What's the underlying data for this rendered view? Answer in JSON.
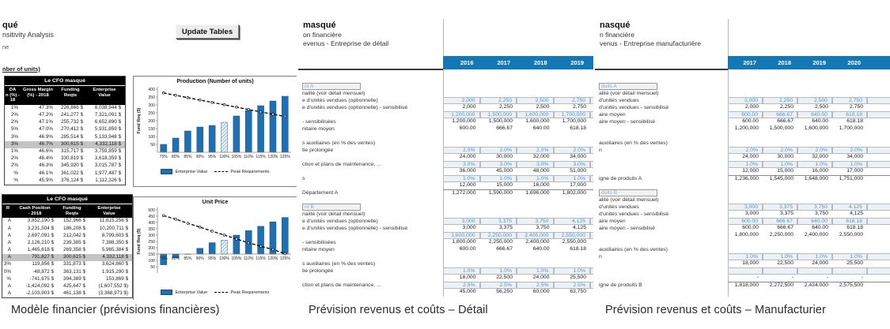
{
  "colors": {
    "header_blue": "#1478b4",
    "input_text_blue": "#4f93ce",
    "bar_blue": "#1f6fb5",
    "highlight_gray": "#c4c4c4"
  },
  "captions": [
    "Modèle financier (prévisions financières)",
    "Prévision revenus et coûts – Détail",
    "Prévision revenus et coûts – Manufacturier"
  ],
  "left_panel": {
    "title_fragment": "qué",
    "subtitle_fragment": "nsitivity Analysis",
    "note_fragment": "ne",
    "section_fragment": "nber of units)",
    "update_button": "Update Tables",
    "table1": {
      "title": "Le CFO masqué",
      "headers": [
        "DA\nn (%) -\n18",
        "Gross Margin\n(%) - 2018",
        "Funding\nReqts",
        "Enterprise\nValue"
      ],
      "rows": [
        [
          "1%",
          "47.3%",
          "226,866 $",
          "8,038,944 $"
        ],
        [
          "2%",
          "47.2%",
          "241,277 $",
          "7,321,091 $"
        ],
        [
          "2%",
          "47.1%",
          "255,732 $",
          "6,652,890 $"
        ],
        [
          "5%",
          "47.0%",
          "270,412 $",
          "5,931,859 $"
        ],
        [
          "3%",
          "46.9%",
          "285,514 $",
          "5,133,948 $"
        ],
        [
          "3%",
          "46.7%",
          "300,615 $",
          "4,332,118 $"
        ],
        [
          "1%",
          "46.6%",
          "315,717 $",
          "3,759,859 $"
        ],
        [
          "2%",
          "46.4%",
          "330,819 $",
          "3,618,359 $"
        ],
        [
          "2%",
          "46.3%",
          "345,920 $",
          "3,015,787 $"
        ],
        [
          "%",
          "46.1%",
          "361,022 $",
          "1,977,487 $"
        ],
        [
          "%",
          "45.9%",
          "376,124 $",
          "1,112,326 $"
        ]
      ],
      "highlight_row": 5
    },
    "table2": {
      "title": "Le CFO masqué",
      "headers": [
        "R",
        "Cash Position\n- 2018",
        "Funding\nReqts",
        "Enterprise\nValue"
      ],
      "rows": [
        [
          "A",
          "3,852,190 $",
          "152,966 $",
          "11,615,256 $"
        ],
        [
          "A",
          "3,231,504 $",
          "186,208 $",
          "10,200,711 $"
        ],
        [
          "A",
          "2,697,091 $",
          "212,042 $",
          "8,799,603 $"
        ],
        [
          "A",
          "2,126,210 $",
          "239,385 $",
          "7,388,350 $"
        ],
        [
          "A",
          "1,465,618 $",
          "269,358 $",
          "5,965,384 $"
        ],
        [
          "A",
          "791,827 $",
          "300,615 $",
          "4,332,118 $"
        ],
        [
          "3%",
          "119,856 $",
          "331,873 $",
          "3,624,860 $"
        ],
        [
          "0%",
          "-48,872 $",
          "363,131 $",
          "1,915,290 $"
        ],
        [
          "%",
          "-741,675 $",
          "394,389 $",
          "153,869 $"
        ],
        [
          "A",
          "-1,424,092 $",
          "425,647 $",
          "(1,607,552 $)"
        ],
        [
          "A",
          "-2,103,903 $",
          "461,138 $",
          "(3,368,973 $)"
        ]
      ],
      "highlight_row": 5
    }
  },
  "chart_data": [
    {
      "type": "bar",
      "title": "Production (Number of units)",
      "ylabel": "Fund Req ($)",
      "xlabel": "",
      "categories": [
        "75%",
        "80%",
        "85%",
        "90%",
        "95%",
        "100%",
        "105%",
        "110%",
        "115%",
        "120%",
        "125%"
      ],
      "series": [
        {
          "name": "Enterprise Value",
          "type": "bar",
          "values": [
            50,
            90,
            135,
            160,
            170,
            190,
            230,
            265,
            295,
            325,
            355
          ]
        },
        {
          "name": "Peak Requirements",
          "type": "line",
          "dashed": true,
          "values": [
            376,
            361,
            346,
            331,
            316,
            301,
            286,
            271,
            256,
            241,
            227
          ]
        }
      ],
      "ylim": [
        0,
        400
      ],
      "ytick_step": 50,
      "bar_baseline": 0,
      "hatched_index": 5,
      "grid": false,
      "legend_position": "bottom"
    },
    {
      "type": "bar",
      "title": "Unit Price",
      "ylabel": "Fund Req ($)",
      "xlabel": "",
      "categories": [
        "75%",
        "80%",
        "85%",
        "90%",
        "95%",
        "100%",
        "105%",
        "110%",
        "115%",
        "120%",
        "125%"
      ],
      "series": [
        {
          "name": "Enterprise Value",
          "type": "bar",
          "values": [
            65,
            120,
            150,
            195,
            240,
            260,
            300,
            335,
            370,
            405,
            440
          ]
        },
        {
          "name": "Peak Requirements",
          "type": "line",
          "dashed": true,
          "values": [
            455,
            426,
            394,
            363,
            331,
            301,
            269,
            239,
            212,
            186,
            153
          ]
        }
      ],
      "ylim": [
        0,
        500
      ],
      "ytick_step": 50,
      "bar_baseline": 150,
      "hatched_index": 5,
      "grid": false,
      "legend_position": "bottom"
    }
  ],
  "middle_panel": {
    "title_fragment": "masqué",
    "subtitle_fragment": "on financière",
    "section_fragment": "evenus - Entreprise de détail",
    "years": [
      "2016",
      "2017",
      "2018",
      "2019"
    ],
    "rows": [
      {
        "t": "group",
        "label": "nt A"
      },
      {
        "t": "text",
        "label": "nalité (voir détail mensuel)"
      },
      {
        "t": "input",
        "label": "e d'unités vendues (optionnelle)",
        "v": [
          "2,000",
          "2,250",
          "2,500",
          "2,750"
        ]
      },
      {
        "t": "plain",
        "label": "e d'unités vendues (optionnelle) - sensibilisé",
        "v": [
          "2,000",
          "2,250",
          "2,500",
          "2,750"
        ]
      },
      {
        "t": "input",
        "label": "",
        "v": [
          "1,200,000",
          "1,500,000",
          "1,600,000",
          "1,700,000"
        ]
      },
      {
        "t": "plain",
        "label": " - sensibilisées",
        "v": [
          "1,200,000",
          "1,500,000",
          "1,600,000",
          "1,700,000"
        ]
      },
      {
        "t": "plain",
        "label": "nitaire moyen",
        "v": [
          "600.00",
          "666.67",
          "640.00",
          "618.18"
        ]
      },
      {
        "t": "spacer"
      },
      {
        "t": "text",
        "label": "s auxiliaires (en % des ventes)"
      },
      {
        "t": "input",
        "label": "tie prolongée",
        "v": [
          "2.0%",
          "2.0%",
          "2.0%",
          "2.0%"
        ]
      },
      {
        "t": "plain",
        "label": "",
        "v": [
          "24,000",
          "30,000",
          "32,000",
          "34,000"
        ]
      },
      {
        "t": "input",
        "label": "ction et plans de maintenance, ...",
        "v": [
          "3.0%",
          "3.0%",
          "3.0%",
          "3.0%"
        ]
      },
      {
        "t": "plain",
        "label": "",
        "v": [
          "36,000",
          "45,000",
          "48,000",
          "51,000"
        ]
      },
      {
        "t": "input",
        "label": "s",
        "v": [
          "1.0%",
          "1.0%",
          "1.0%",
          "1.0%"
        ]
      },
      {
        "t": "plain",
        "label": "",
        "v": [
          "12,000",
          "15,000",
          "16,000",
          "17,000"
        ]
      },
      {
        "t": "total",
        "label": "Département A",
        "v": [
          "1,272,000",
          "1,590,000",
          "1,696,000",
          "1,802,000"
        ]
      },
      {
        "t": "spacer"
      },
      {
        "t": "group",
        "label": "nt B"
      },
      {
        "t": "text",
        "label": "nalité (voir détail mensuel)"
      },
      {
        "t": "input",
        "label": "e d'unités vendues (optionnelle)",
        "v": [
          "3,000",
          "3,375",
          "3,750",
          "4,125"
        ]
      },
      {
        "t": "plain",
        "label": "e d'unités vendues (optionnelle) - sensibilisé",
        "v": [
          "3,000",
          "3,375",
          "3,750",
          "4,125"
        ]
      },
      {
        "t": "input",
        "label": "",
        "v": [
          "1,800,000",
          "2,250,000",
          "2,400,000",
          "2,550,000"
        ]
      },
      {
        "t": "plain",
        "label": " - sensibilisées",
        "v": [
          "1,800,000",
          "2,250,000",
          "2,400,000",
          "2,550,000"
        ]
      },
      {
        "t": "plain",
        "label": "nitaire moyen",
        "v": [
          "600.00",
          "666.67",
          "640.00",
          "618.18"
        ]
      },
      {
        "t": "spacer"
      },
      {
        "t": "text",
        "label": "s auxiliaires (en % des ventes)"
      },
      {
        "t": "input",
        "label": "tie prolongée",
        "v": [
          "1.0%",
          "1.0%",
          "1.0%",
          "1.0%"
        ]
      },
      {
        "t": "plain",
        "label": "",
        "v": [
          "18,000",
          "22,500",
          "24,000",
          "25,500"
        ]
      },
      {
        "t": "input",
        "label": "ction et plans de maintenance, ...",
        "v": [
          "2.5%",
          "2.5%",
          "2.5%",
          "2.5%"
        ]
      },
      {
        "t": "plain",
        "label": "",
        "v": [
          "45,000",
          "56,250",
          "60,000",
          "63,750"
        ]
      }
    ]
  },
  "right_panel": {
    "title_fragment": "nasqué",
    "subtitle_fragment": "n financière",
    "section_fragment": "venus - Entreprise manufacturière",
    "years": [
      "2017",
      "2018",
      "2019",
      "2020"
    ],
    "rows": [
      {
        "t": "group",
        "label": "duits A"
      },
      {
        "t": "text",
        "label": "alité (voir détail mensuel)"
      },
      {
        "t": "input",
        "label": "d'unités vendues",
        "v": [
          "2,000",
          "2,250",
          "2,500",
          "2,750"
        ]
      },
      {
        "t": "plain",
        "label": "d'unités vendues - sensibilisé",
        "v": [
          "2,000",
          "2,250",
          "2,500",
          "2,750"
        ]
      },
      {
        "t": "input",
        "label": "aire moyen",
        "v": [
          "600.00",
          "666.67",
          "640.00",
          "618.18"
        ]
      },
      {
        "t": "plain",
        "label": "aire moyen - sensibilisé",
        "v": [
          "600.00",
          "666.67",
          "640.00",
          "618.18"
        ]
      },
      {
        "t": "plain",
        "label": "",
        "v": [
          "1,200,000",
          "1,500,000",
          "1,600,000",
          "1,700,000"
        ]
      },
      {
        "t": "spacer"
      },
      {
        "t": "text",
        "label": "auxiliaires (en % des ventes)"
      },
      {
        "t": "input",
        "label": "n",
        "v": [
          "2.0%",
          "2.0%",
          "2.0%",
          "2.0%"
        ]
      },
      {
        "t": "plain",
        "label": "",
        "v": [
          "24,000",
          "30,000",
          "32,000",
          "34,000"
        ]
      },
      {
        "t": "input",
        "label": "",
        "v": [
          "1.0%",
          "1.0%",
          "1.0%",
          "1.0%"
        ]
      },
      {
        "t": "plain",
        "label": "",
        "v": [
          "12,000",
          "15,000",
          "16,000",
          "17,000"
        ]
      },
      {
        "t": "total",
        "label": "igne de produits A",
        "v": [
          "1,236,000",
          "1,545,000",
          "1,648,000",
          "1,751,000"
        ]
      },
      {
        "t": "spacer"
      },
      {
        "t": "group",
        "label": "duits B"
      },
      {
        "t": "text",
        "label": "alité (voir détail mensuel)"
      },
      {
        "t": "input",
        "label": "d'unités vendues",
        "v": [
          "3,000",
          "3,375",
          "3,750",
          "4,125"
        ]
      },
      {
        "t": "plain",
        "label": "d'unités vendues - sensibilisé",
        "v": [
          "3,000",
          "3,375",
          "3,750",
          "4,125"
        ]
      },
      {
        "t": "input",
        "label": "aire moyen",
        "v": [
          "600.00",
          "666.67",
          "640.00",
          "618.18"
        ]
      },
      {
        "t": "plain",
        "label": "aire moyen - sensibilisé",
        "v": [
          "600.00",
          "666.67",
          "640.00",
          "618.18"
        ]
      },
      {
        "t": "plain",
        "label": "",
        "v": [
          "1,800,000",
          "2,250,000",
          "2,400,000",
          "2,550,000"
        ]
      },
      {
        "t": "spacer"
      },
      {
        "t": "text",
        "label": "auxiliaires (en % des ventes)"
      },
      {
        "t": "input",
        "label": "n",
        "v": [
          "1.0%",
          "1.0%",
          "1.0%",
          "1.0%"
        ]
      },
      {
        "t": "plain",
        "label": "",
        "v": [
          "18,000",
          "22,500",
          "24,000",
          "25,500"
        ]
      },
      {
        "t": "empty-input",
        "label": "",
        "v": [
          "",
          "",
          "",
          ""
        ]
      },
      {
        "t": "plain",
        "label": "",
        "v": [
          "-",
          "-",
          "-",
          "-"
        ]
      },
      {
        "t": "total",
        "label": "igne de produits B",
        "v": [
          "1,818,000",
          "2,272,500",
          "2,424,000",
          "2,575,500"
        ]
      }
    ]
  }
}
